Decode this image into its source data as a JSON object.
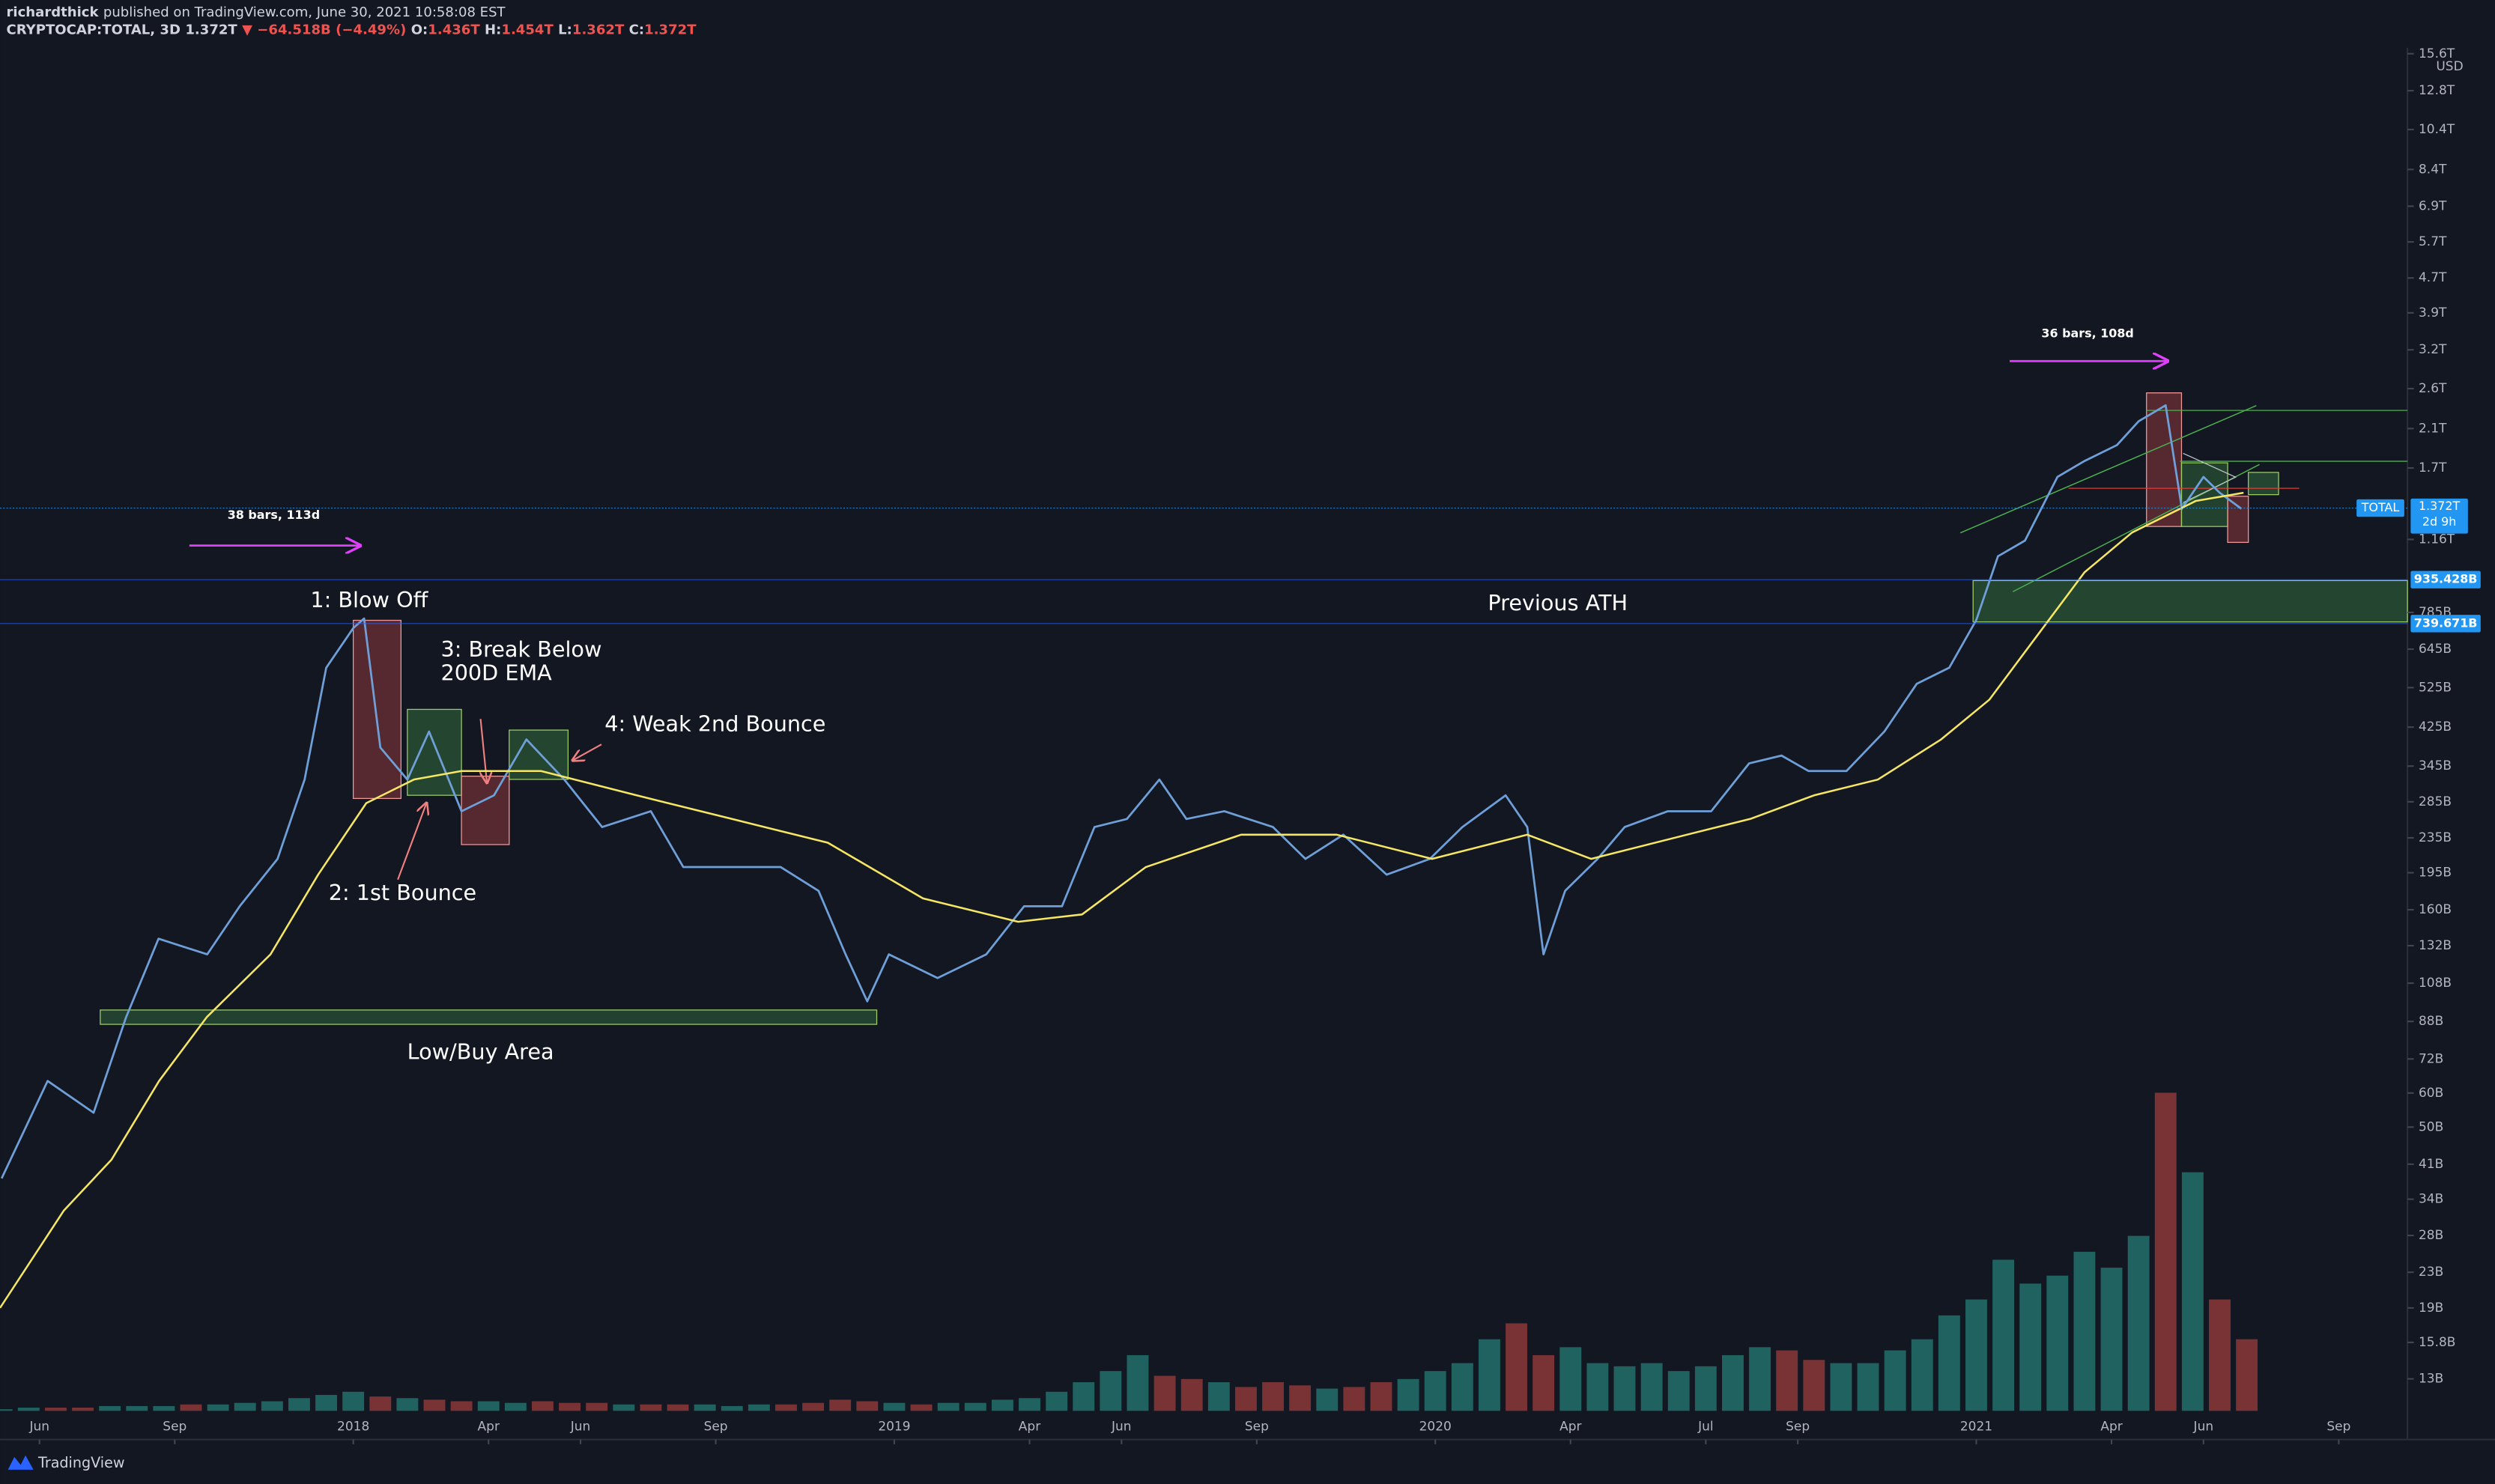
{
  "header": {
    "publisher": "richardthick",
    "published": "published on TradingView.com, June 30, 2021 10:58:08 EST",
    "symbol": "CRYPTOCAP:TOTAL, 3D",
    "last": "1.372T",
    "change": "▼ −64.518B (−4.49%)",
    "ohlc": [
      {
        "key": "O:",
        "val": "1.436T"
      },
      {
        "key": "H:",
        "val": "1.454T"
      },
      {
        "key": "L:",
        "val": "1.362T"
      },
      {
        "key": "C:",
        "val": "1.372T"
      }
    ]
  },
  "footer": {
    "brand": "TradingView"
  },
  "chart_data": {
    "type": "line",
    "log": true,
    "currency": "USD",
    "xlim": [
      2017.347,
      2021.797
    ],
    "xticks": [
      {
        "value": 2017.42,
        "label": "Jun"
      },
      {
        "value": 2017.67,
        "label": "Sep"
      },
      {
        "value": 2018,
        "label": "2018"
      },
      {
        "value": 2018.25,
        "label": "Apr"
      },
      {
        "value": 2018.42,
        "label": "Jun"
      },
      {
        "value": 2018.67,
        "label": "Sep"
      },
      {
        "value": 2019,
        "label": "2019"
      },
      {
        "value": 2019.25,
        "label": "Apr"
      },
      {
        "value": 2019.42,
        "label": "Jun"
      },
      {
        "value": 2019.67,
        "label": "Sep"
      },
      {
        "value": 2020,
        "label": "2020"
      },
      {
        "value": 2020.25,
        "label": "Apr"
      },
      {
        "value": 2020.5,
        "label": "Jul"
      },
      {
        "value": 2020.67,
        "label": "Sep"
      },
      {
        "value": 2021,
        "label": "2021"
      },
      {
        "value": 2021.25,
        "label": "Apr"
      },
      {
        "value": 2021.42,
        "label": "Jun"
      },
      {
        "value": 2021.67,
        "label": "Sep"
      }
    ],
    "ylim": [
      9.4,
      16110
    ],
    "yticks": [
      {
        "value": 15600,
        "label": "15.6T"
      },
      {
        "value": 12800,
        "label": "12.8T"
      },
      {
        "value": 10400,
        "label": "10.4T"
      },
      {
        "value": 8400,
        "label": "8.4T"
      },
      {
        "value": 6900,
        "label": "6.9T"
      },
      {
        "value": 5700,
        "label": "5.7T"
      },
      {
        "value": 4700,
        "label": "4.7T"
      },
      {
        "value": 3900,
        "label": "3.9T"
      },
      {
        "value": 3200,
        "label": "3.2T"
      },
      {
        "value": 2600,
        "label": "2.6T"
      },
      {
        "value": 2100,
        "label": "2.1T"
      },
      {
        "value": 1700,
        "label": "1.7T"
      },
      {
        "value": 1160,
        "label": "1.16T"
      },
      {
        "value": 785,
        "label": "785B"
      },
      {
        "value": 645,
        "label": "645B"
      },
      {
        "value": 525,
        "label": "525B"
      },
      {
        "value": 425,
        "label": "425B"
      },
      {
        "value": 345,
        "label": "345B"
      },
      {
        "value": 285,
        "label": "285B"
      },
      {
        "value": 235,
        "label": "235B"
      },
      {
        "value": 195,
        "label": "195B"
      },
      {
        "value": 160,
        "label": "160B"
      },
      {
        "value": 132,
        "label": "132B"
      },
      {
        "value": 108,
        "label": "108B"
      },
      {
        "value": 88,
        "label": "88B"
      },
      {
        "value": 72,
        "label": "72B"
      },
      {
        "value": 60,
        "label": "60B"
      },
      {
        "value": 50,
        "label": "50B"
      },
      {
        "value": 41,
        "label": "41B"
      },
      {
        "value": 34,
        "label": "34B"
      },
      {
        "value": 28,
        "label": "28B"
      },
      {
        "value": 23,
        "label": "23B"
      },
      {
        "value": 19,
        "label": "19B"
      },
      {
        "value": 15.8,
        "label": "15.8B"
      },
      {
        "value": 13,
        "label": "13B"
      }
    ],
    "series": [
      {
        "name": "TOTAL",
        "color": "#6f9fd8",
        "x": [
          2017.35,
          2017.435,
          2017.52,
          2017.58,
          2017.64,
          2017.73,
          2017.79,
          2017.86,
          2017.91,
          2017.95,
          2018.0,
          2018.02,
          2018.05,
          2018.1,
          2018.14,
          2018.2,
          2018.26,
          2018.32,
          2018.39,
          2018.46,
          2018.55,
          2018.61,
          2018.7,
          2018.79,
          2018.86,
          2018.91,
          2018.95,
          2018.99,
          2019.08,
          2019.17,
          2019.24,
          2019.31,
          2019.37,
          2019.43,
          2019.49,
          2019.54,
          2019.61,
          2019.7,
          2019.76,
          2019.83,
          2019.91,
          2019.99,
          2020.05,
          2020.13,
          2020.17,
          2020.2,
          2020.24,
          2020.3,
          2020.35,
          2020.43,
          2020.51,
          2020.58,
          2020.64,
          2020.69,
          2020.76,
          2020.83,
          2020.89,
          2020.95,
          2021.0,
          2021.04,
          2021.09,
          2021.15,
          2021.2,
          2021.26,
          2021.3,
          2021.35,
          2021.38,
          2021.42,
          2021.45,
          2021.49
        ],
        "values": [
          38,
          64,
          54,
          90,
          137,
          126,
          163,
          210,
          321,
          584,
          722,
          760,
          381,
          321,
          415,
          271,
          295,
          398,
          321,
          249,
          271,
          201,
          201,
          201,
          177,
          126,
          98,
          126,
          111,
          126,
          163,
          163,
          249,
          260,
          321,
          260,
          271,
          249,
          210,
          239,
          193,
          210,
          249,
          295,
          249,
          126,
          177,
          210,
          249,
          271,
          271,
          350,
          365,
          336,
          336,
          415,
          536,
          584,
          754,
          1060,
          1153,
          1621,
          1765,
          1922,
          2183,
          2378,
          1367,
          1621,
          1489,
          1367
        ]
      },
      {
        "name": "200D EMA",
        "color": "#f5e663",
        "x": [
          2017.347,
          2017.465,
          2017.553,
          2017.641,
          2017.729,
          2017.847,
          2017.935,
          2018.024,
          2018.112,
          2018.2,
          2018.347,
          2018.524,
          2018.7,
          2018.877,
          2019.053,
          2019.229,
          2019.347,
          2019.465,
          2019.641,
          2019.818,
          2019.994,
          2020.17,
          2020.288,
          2020.465,
          2020.582,
          2020.7,
          2020.818,
          2020.935,
          2021.024,
          2021.112,
          2021.2,
          2021.288,
          2021.406,
          2021.494
        ],
        "values": [
          19,
          32,
          42,
          64,
          90,
          126,
          193,
          283,
          321,
          336,
          336,
          295,
          260,
          229,
          170,
          150,
          156,
          201,
          239,
          239,
          210,
          239,
          210,
          239,
          260,
          295,
          321,
          398,
          492,
          692,
          973,
          1204,
          1426,
          1489
        ]
      }
    ],
    "volume": {
      "x_start": 2017.35,
      "x_step": 0.05,
      "ylim": [
        0,
        250
      ],
      "up_color": "#22706b",
      "down_color": "#8c3838",
      "values": [
        1,
        2,
        2,
        2,
        3,
        3,
        3,
        4,
        4,
        5,
        6,
        8,
        10,
        12,
        9,
        8,
        7,
        6,
        6,
        5,
        6,
        5,
        5,
        4,
        4,
        4,
        4,
        3,
        4,
        4,
        5,
        7,
        6,
        5,
        4,
        5,
        5,
        7,
        8,
        12,
        18,
        25,
        35,
        22,
        20,
        18,
        15,
        18,
        16,
        14,
        15,
        18,
        20,
        25,
        30,
        45,
        55,
        35,
        40,
        30,
        28,
        30,
        25,
        28,
        35,
        40,
        38,
        32,
        30,
        30,
        38,
        45,
        60,
        70,
        95,
        80,
        85,
        100,
        90,
        110,
        200,
        150,
        70,
        45
      ]
    },
    "current": {
      "name": "TOTAL",
      "value": 1372,
      "label": "1.372T",
      "countdown": "2d 9h"
    },
    "levels": [
      {
        "value": 935.428,
        "label": "935.428B"
      },
      {
        "value": 739.671,
        "label": "739.671B"
      }
    ],
    "annotations": {
      "blow_off": "1: Blow Off",
      "first_bounce": "2: 1st Bounce",
      "break_below": [
        "3: Break Below",
        "200D EMA"
      ],
      "weak_bounce": "4: Weak 2nd Bounce",
      "low_buy": "Low/Buy Area",
      "previous_ath": "Previous ATH",
      "range_2018": "38 bars, 113d",
      "range_2021": "36 bars, 108d"
    }
  }
}
